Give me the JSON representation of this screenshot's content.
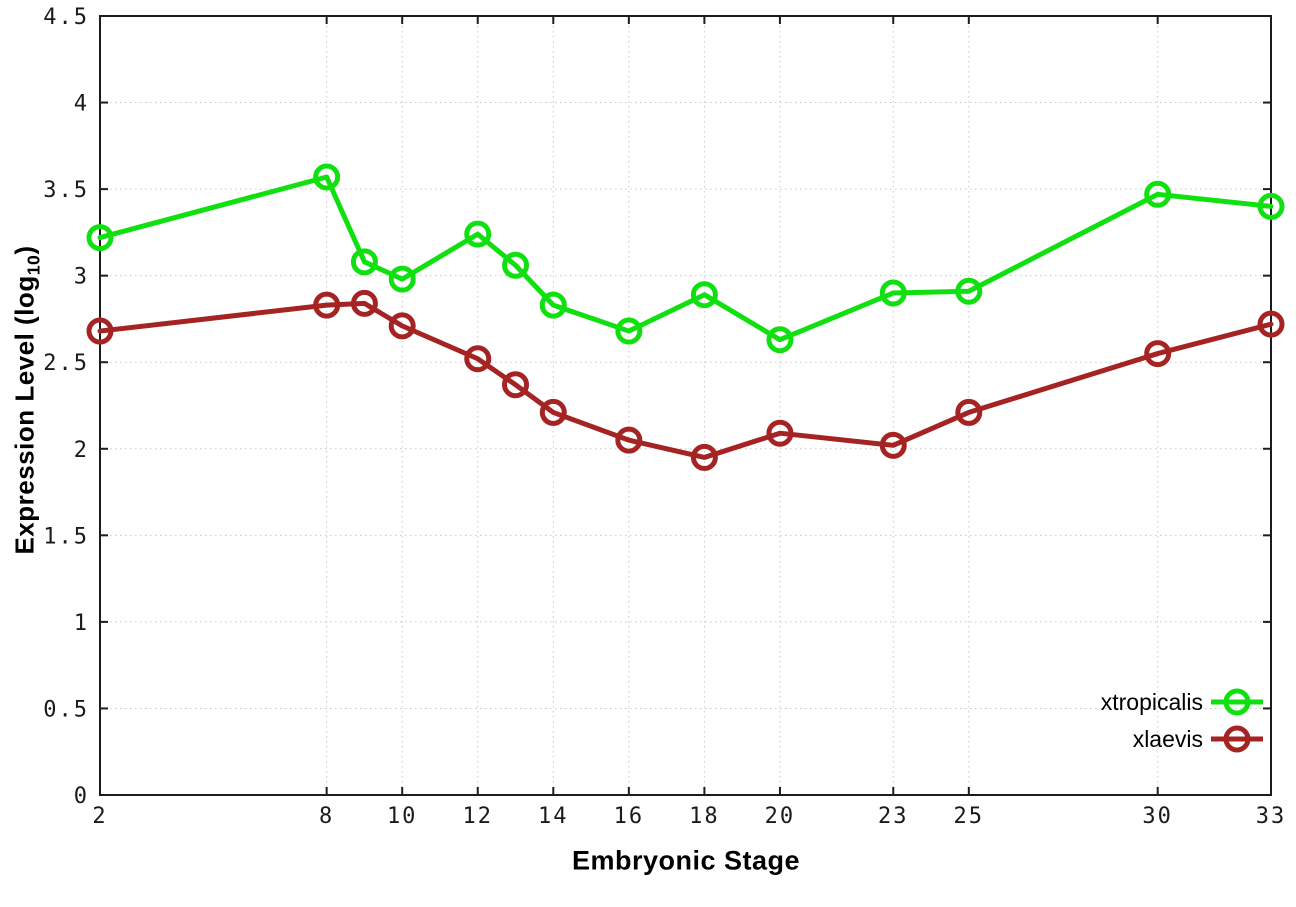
{
  "colors": {
    "background": "#ffffff",
    "border": "#1c1c1c",
    "grid": "#c8c8c8",
    "tick_text": "#1a1a1a",
    "label_text": "#000000",
    "xtropicalis": "#10e010",
    "xlaevis": "#a52323"
  },
  "chart_data": {
    "type": "line",
    "title": "",
    "xlabel": "Embryonic Stage",
    "ylabel": "Expression Level (log10)",
    "ylabel_parts": {
      "prefix": "Expression Level (log",
      "subscript": "10",
      "suffix": ")"
    },
    "x": [
      2,
      8,
      9,
      10,
      12,
      13,
      14,
      16,
      18,
      20,
      23,
      25,
      30,
      33
    ],
    "series": [
      {
        "name": "xtropicalis",
        "color": "#10e010",
        "marker": "open-circle",
        "values": [
          3.22,
          3.57,
          3.08,
          2.98,
          3.24,
          3.06,
          2.83,
          2.68,
          2.89,
          2.63,
          2.9,
          2.91,
          3.47,
          3.4
        ]
      },
      {
        "name": "xlaevis",
        "color": "#a52323",
        "marker": "open-circle",
        "values": [
          2.68,
          2.83,
          2.84,
          2.71,
          2.52,
          2.37,
          2.21,
          2.05,
          1.95,
          2.09,
          2.02,
          2.21,
          2.55,
          2.72
        ]
      }
    ],
    "xlim": [
      2,
      33
    ],
    "ylim": [
      0,
      4.5
    ],
    "x_ticks": [
      {
        "value": 2,
        "label": "2"
      },
      {
        "value": 8,
        "label": "8"
      },
      {
        "value": 10,
        "label": "10"
      },
      {
        "value": 12,
        "label": "12"
      },
      {
        "value": 14,
        "label": "14"
      },
      {
        "value": 16,
        "label": "16"
      },
      {
        "value": 18,
        "label": "18"
      },
      {
        "value": 20,
        "label": "20"
      },
      {
        "value": 23,
        "label": "23"
      },
      {
        "value": 25,
        "label": "25"
      },
      {
        "value": 30,
        "label": "30"
      },
      {
        "value": 33,
        "label": "33"
      }
    ],
    "y_ticks": [
      {
        "value": 0,
        "label": "0"
      },
      {
        "value": 0.5,
        "label": "0.5"
      },
      {
        "value": 1,
        "label": "1"
      },
      {
        "value": 1.5,
        "label": "1.5"
      },
      {
        "value": 2,
        "label": "2"
      },
      {
        "value": 2.5,
        "label": "2.5"
      },
      {
        "value": 3,
        "label": "3"
      },
      {
        "value": 3.5,
        "label": "3.5"
      },
      {
        "value": 4,
        "label": "4"
      },
      {
        "value": 4.5,
        "label": "4.5"
      }
    ],
    "grid": true,
    "legend_position": "bottom-right-inside",
    "legend_entries": [
      "xtropicalis",
      "xlaevis"
    ]
  }
}
